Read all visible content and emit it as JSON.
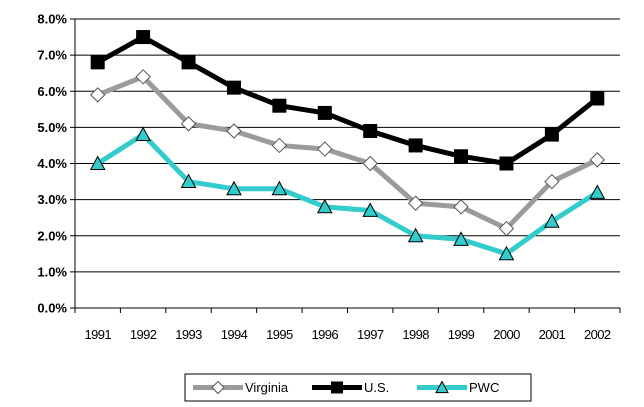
{
  "chart_data": {
    "type": "line",
    "title": "",
    "xlabel": "",
    "ylabel": "",
    "categories": [
      "1991",
      "1992",
      "1993",
      "1994",
      "1995",
      "1996",
      "1997",
      "1998",
      "1999",
      "2000",
      "2001",
      "2002"
    ],
    "ylim": [
      0,
      8
    ],
    "yticks": [
      "0.0%",
      "1.0%",
      "2.0%",
      "3.0%",
      "4.0%",
      "5.0%",
      "6.0%",
      "7.0%",
      "8.0%"
    ],
    "grid": true,
    "legend_position": "bottom",
    "series": [
      {
        "name": "Virginia",
        "color": "#9b9b9b",
        "marker": "diamond",
        "values": [
          5.9,
          6.4,
          5.1,
          4.9,
          4.5,
          4.4,
          4.0,
          2.9,
          2.8,
          2.2,
          3.5,
          4.1
        ]
      },
      {
        "name": "U.S.",
        "color": "#000000",
        "marker": "square",
        "values": [
          6.8,
          7.5,
          6.8,
          6.1,
          5.6,
          5.4,
          4.9,
          4.5,
          4.2,
          4.0,
          4.8,
          5.8
        ]
      },
      {
        "name": "PWC",
        "color": "#33cccc",
        "marker": "triangle",
        "values": [
          4.0,
          4.8,
          3.5,
          3.3,
          3.3,
          2.8,
          2.7,
          2.0,
          1.9,
          1.5,
          2.4,
          3.2
        ]
      }
    ]
  }
}
